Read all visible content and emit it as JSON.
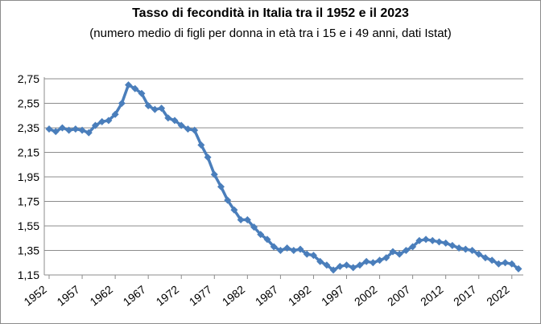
{
  "chart_data": {
    "type": "line",
    "title": "Tasso di fecondità in Italia tra il 1952 e il 2023",
    "subtitle": "(numero medio di figli per donna in età tra i 15 e i 49 anni, dati Istat)",
    "xlabel": "",
    "ylabel": "",
    "ylim": [
      1.15,
      2.75
    ],
    "yticks": [
      "1,15",
      "1,35",
      "1,55",
      "1,75",
      "1,95",
      "2,15",
      "2,35",
      "2,55",
      "2,75"
    ],
    "xticks": [
      "1952",
      "1957",
      "1962",
      "1967",
      "1972",
      "1977",
      "1982",
      "1987",
      "1992",
      "1997",
      "2002",
      "2007",
      "2012",
      "2017",
      "2022"
    ],
    "grid": "horizontal",
    "legend": "none",
    "series": [
      {
        "color": "#4a7ebb",
        "marker": "diamond",
        "x": [
          1952,
          1953,
          1954,
          1955,
          1956,
          1957,
          1958,
          1959,
          1960,
          1961,
          1962,
          1963,
          1964,
          1965,
          1966,
          1967,
          1968,
          1969,
          1970,
          1971,
          1972,
          1973,
          1974,
          1975,
          1976,
          1977,
          1978,
          1979,
          1980,
          1981,
          1982,
          1983,
          1984,
          1985,
          1986,
          1987,
          1988,
          1989,
          1990,
          1991,
          1992,
          1993,
          1994,
          1995,
          1996,
          1997,
          1998,
          1999,
          2000,
          2001,
          2002,
          2003,
          2004,
          2005,
          2006,
          2007,
          2008,
          2009,
          2010,
          2011,
          2012,
          2013,
          2014,
          2015,
          2016,
          2017,
          2018,
          2019,
          2020,
          2021,
          2022,
          2023
        ],
        "values": [
          2.34,
          2.32,
          2.35,
          2.33,
          2.34,
          2.33,
          2.31,
          2.37,
          2.4,
          2.41,
          2.46,
          2.55,
          2.7,
          2.67,
          2.63,
          2.53,
          2.5,
          2.51,
          2.43,
          2.41,
          2.37,
          2.34,
          2.33,
          2.21,
          2.11,
          1.97,
          1.87,
          1.76,
          1.68,
          1.6,
          1.6,
          1.54,
          1.48,
          1.44,
          1.38,
          1.35,
          1.37,
          1.35,
          1.36,
          1.32,
          1.31,
          1.26,
          1.23,
          1.19,
          1.22,
          1.23,
          1.21,
          1.23,
          1.26,
          1.25,
          1.27,
          1.29,
          1.34,
          1.32,
          1.35,
          1.38,
          1.43,
          1.44,
          1.43,
          1.42,
          1.41,
          1.39,
          1.37,
          1.36,
          1.35,
          1.32,
          1.29,
          1.27,
          1.24,
          1.25,
          1.24,
          1.2
        ]
      }
    ]
  }
}
